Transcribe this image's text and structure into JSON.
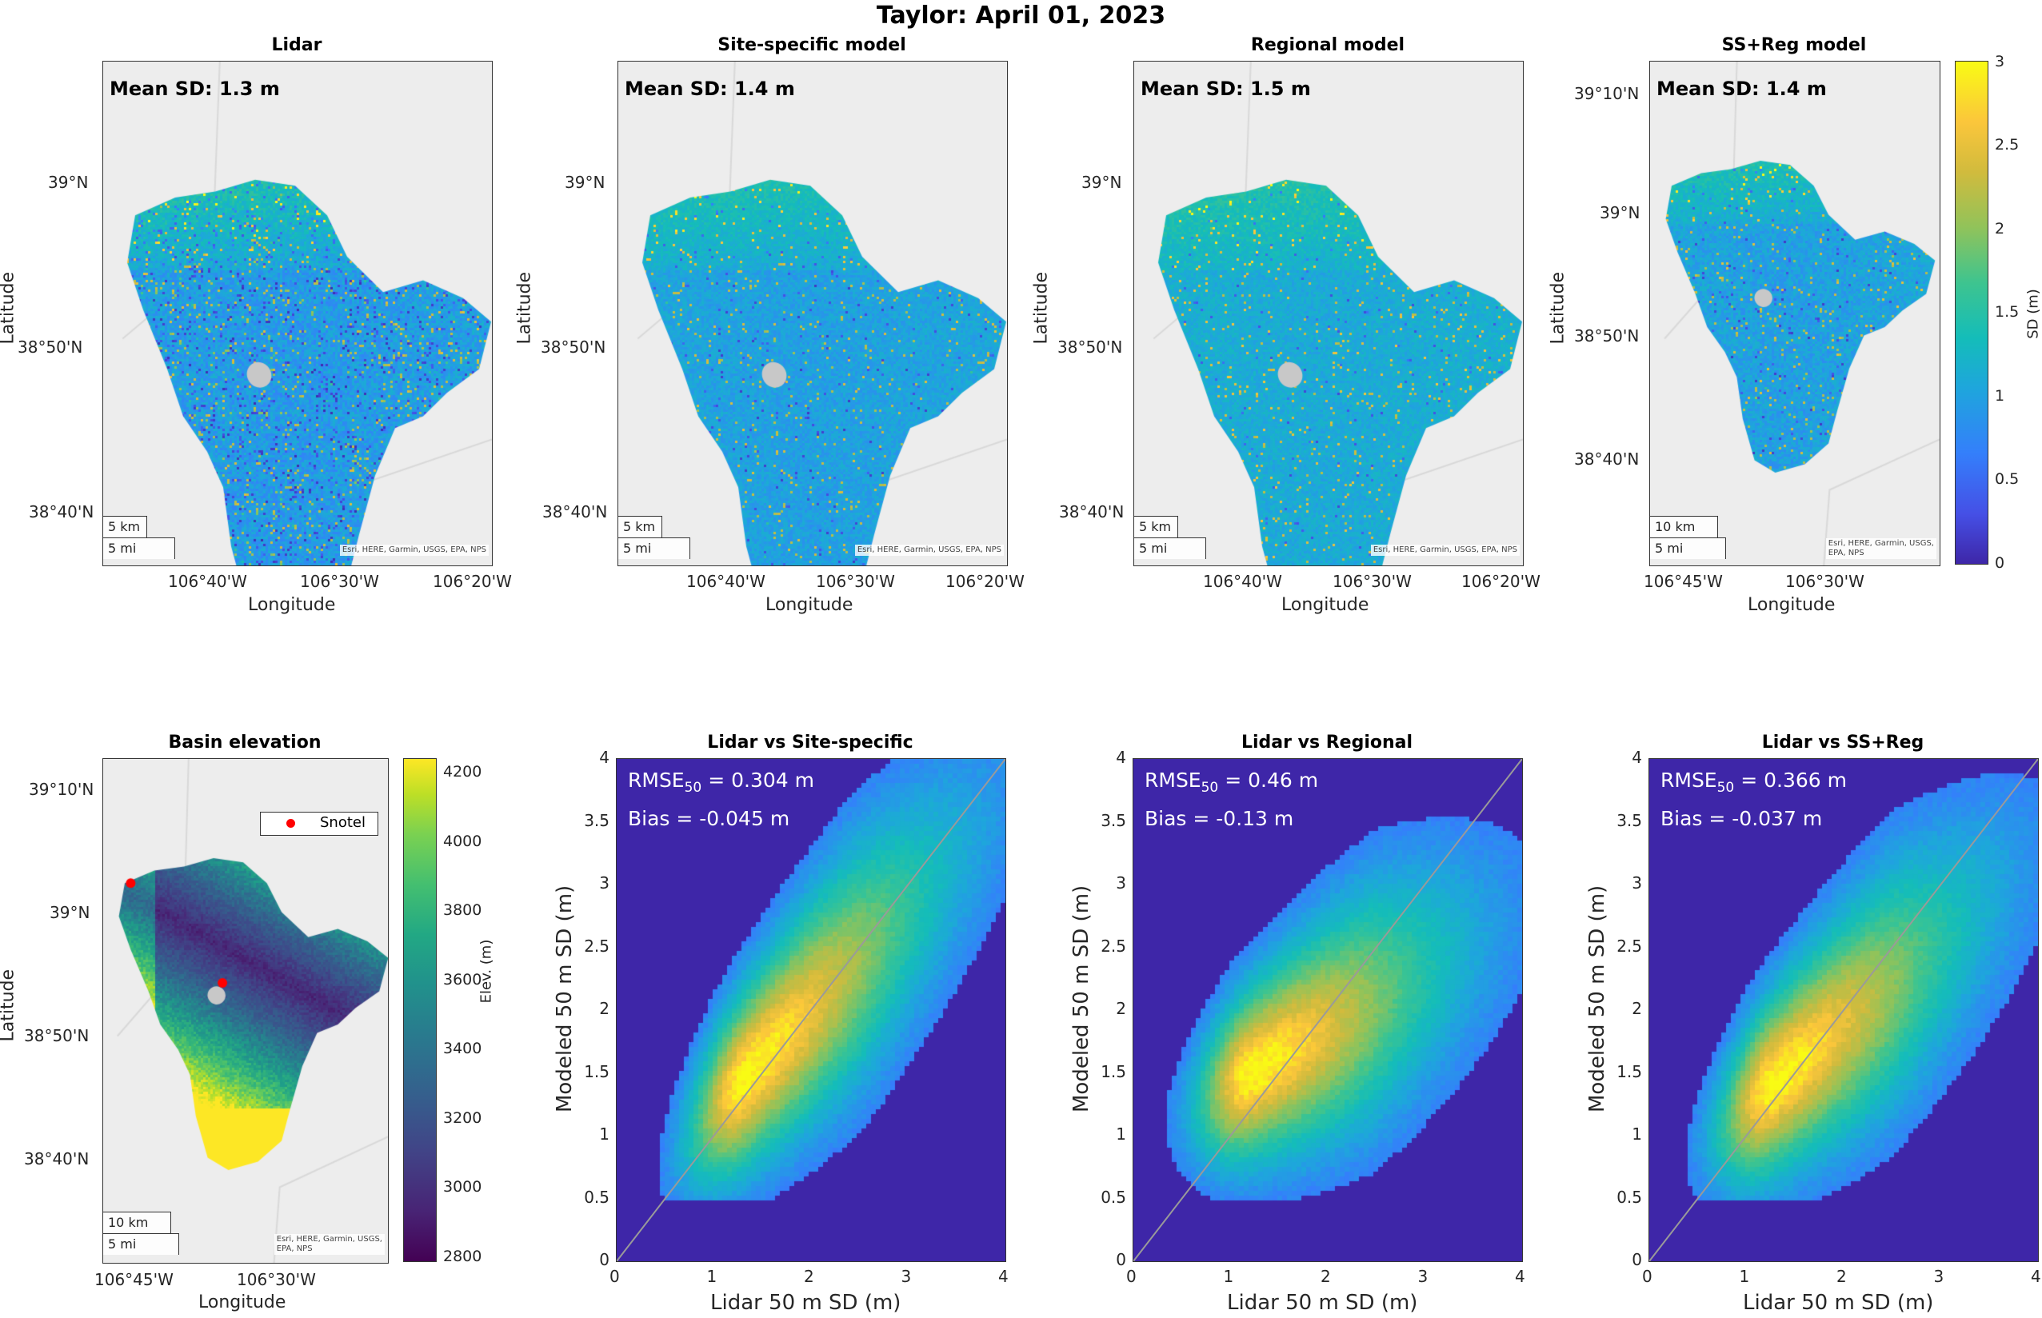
{
  "figure": {
    "title": "Taylor: April 01, 2023"
  },
  "maps": [
    {
      "title": "Lidar",
      "mean_label": "Mean SD: 1.3 m",
      "scale_km": "5 km",
      "scale_mi": "5 mi",
      "attribution": "Esri, HERE, Garmin, USGS, EPA, NPS",
      "lat_ticks": [
        "39°N",
        "38°50'N",
        "38°40'N"
      ],
      "lon_ticks": [
        "106°40'W",
        "106°30'W",
        "106°20'W"
      ],
      "xlabel": "Longitude",
      "ylabel": "Latitude"
    },
    {
      "title": "Site-specific model",
      "mean_label": "Mean SD: 1.4 m",
      "scale_km": "5 km",
      "scale_mi": "5 mi",
      "attribution": "Esri, HERE, Garmin, USGS, EPA, NPS",
      "lat_ticks": [
        "39°N",
        "38°50'N",
        "38°40'N"
      ],
      "lon_ticks": [
        "106°40'W",
        "106°30'W",
        "106°20'W"
      ],
      "xlabel": "Longitude",
      "ylabel": "Latitude"
    },
    {
      "title": "Regional model",
      "mean_label": "Mean SD: 1.5 m",
      "scale_km": "5 km",
      "scale_mi": "5 mi",
      "attribution": "Esri, HERE, Garmin, USGS, EPA, NPS",
      "lat_ticks": [
        "39°N",
        "38°50'N",
        "38°40'N"
      ],
      "lon_ticks": [
        "106°40'W",
        "106°30'W",
        "106°20'W"
      ],
      "xlabel": "Longitude",
      "ylabel": "Latitude"
    },
    {
      "title": "SS+Reg model",
      "mean_label": "Mean SD: 1.4 m",
      "scale_km": "10 km",
      "scale_mi": "5 mi",
      "attribution_l1": "Esri, HERE, Garmin, USGS,",
      "attribution_l2": "EPA, NPS",
      "lat_ticks": [
        "39°10'N",
        "39°N",
        "38°50'N",
        "38°40'N"
      ],
      "lon_ticks": [
        "106°45'W",
        "106°30'W"
      ],
      "xlabel": "Longitude",
      "ylabel": "Latitude"
    }
  ],
  "sd_colorbar": {
    "label": "SD (m)",
    "ticks": [
      "3",
      "2.5",
      "2",
      "1.5",
      "1",
      "0.5",
      "0"
    ]
  },
  "elevation": {
    "title": "Basin elevation",
    "legend_label": "Snotel",
    "scale_km": "10 km",
    "scale_mi": "5 mi",
    "attribution_l1": "Esri, HERE, Garmin, USGS,",
    "attribution_l2": "EPA, NPS",
    "lat_ticks": [
      "39°10'N",
      "39°N",
      "38°50'N",
      "38°40'N"
    ],
    "lon_ticks": [
      "106°45'W",
      "106°30'W"
    ],
    "xlabel": "Longitude",
    "ylabel": "Latitude",
    "colorbar_label": "Elev. (m)",
    "colorbar_ticks": [
      "4200",
      "4000",
      "3800",
      "3600",
      "3400",
      "3200",
      "3000",
      "2800"
    ],
    "snotel_color": "#ff0000"
  },
  "chart_data": [
    {
      "type": "heatmap",
      "title": "Lidar vs Site-specific",
      "xlabel": "Lidar 50 m SD (m)",
      "ylabel": "Modeled 50 m SD (m)",
      "xlim": [
        0,
        4
      ],
      "ylim": [
        0,
        4
      ],
      "xticks": [
        "0",
        "1",
        "2",
        "3",
        "4"
      ],
      "yticks": [
        "4",
        "3.5",
        "3",
        "2.5",
        "2",
        "1.5",
        "1",
        "0.5",
        "0"
      ],
      "rmse_label": "RMSE",
      "rmse_sub": "50",
      "rmse_value": " = 0.304 m",
      "bias_label": "Bias = -0.045 m",
      "density_center": [
        1.3,
        1.45
      ],
      "slope": 0.8,
      "one_to_one": true
    },
    {
      "type": "heatmap",
      "title": "Lidar vs Regional",
      "xlabel": "Lidar 50 m SD (m)",
      "ylabel": "Modeled 50 m SD (m)",
      "xlim": [
        0,
        4
      ],
      "ylim": [
        0,
        4
      ],
      "xticks": [
        "0",
        "1",
        "2",
        "3",
        "4"
      ],
      "yticks": [
        "4",
        "3.5",
        "3",
        "2.5",
        "2",
        "1.5",
        "1",
        "0.5",
        "0"
      ],
      "rmse_label": "RMSE",
      "rmse_sub": "50",
      "rmse_value": " = 0.46 m",
      "bias_label": "Bias = -0.13 m",
      "density_center": [
        1.2,
        1.5
      ],
      "slope": 0.45,
      "one_to_one": true
    },
    {
      "type": "heatmap",
      "title": "Lidar vs SS+Reg",
      "xlabel": "Lidar 50 m SD (m)",
      "ylabel": "Modeled 50 m SD (m)",
      "xlim": [
        0,
        4
      ],
      "ylim": [
        0,
        4
      ],
      "xticks": [
        "0",
        "1",
        "2",
        "3",
        "4"
      ],
      "yticks": [
        "4",
        "3.5",
        "3",
        "2.5",
        "2",
        "1.5",
        "1",
        "0.5",
        "0"
      ],
      "rmse_label": "RMSE",
      "rmse_sub": "50",
      "rmse_value": " = 0.366 m",
      "bias_label": "Bias = -0.037 m",
      "density_center": [
        1.25,
        1.4
      ],
      "slope": 0.65,
      "one_to_one": true
    }
  ]
}
